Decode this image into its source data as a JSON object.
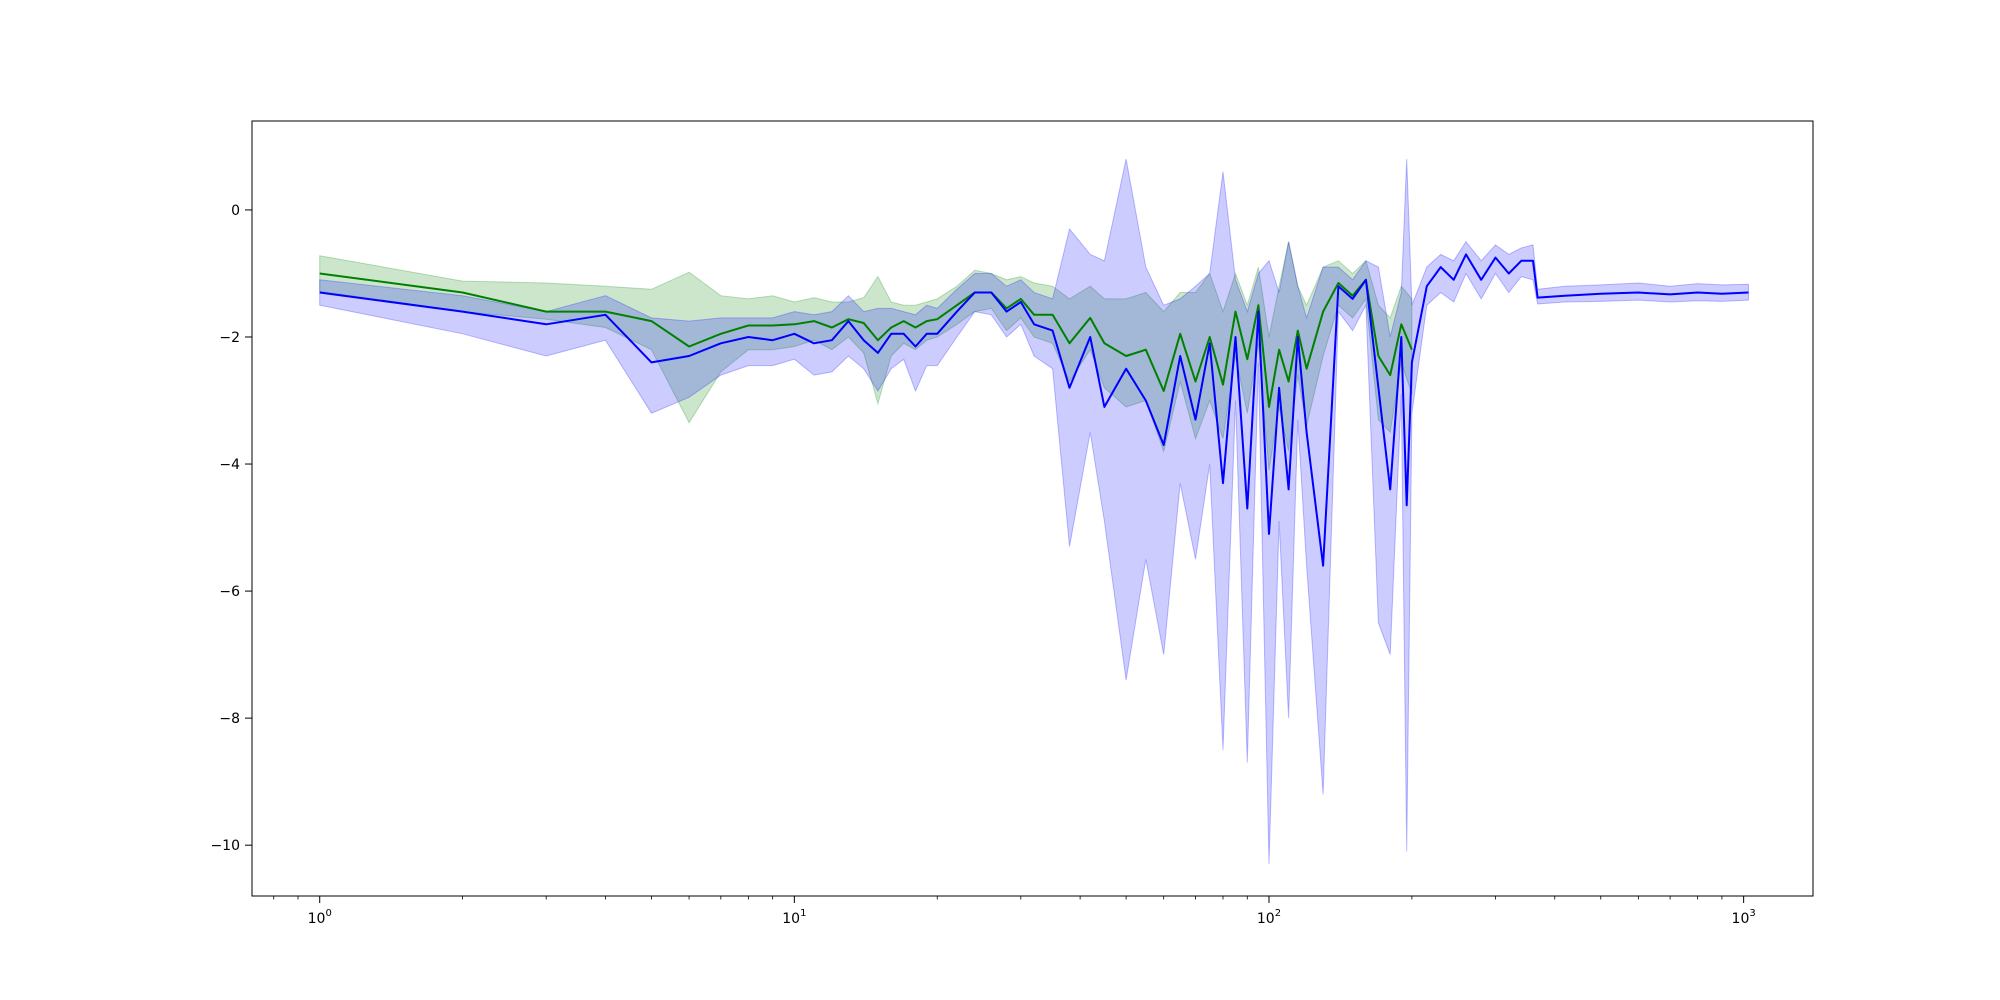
{
  "chart_data": {
    "type": "line",
    "title": "",
    "xlabel": "",
    "ylabel": "",
    "xscale": "log",
    "xlim": [
      0.72,
      1400
    ],
    "ylim": [
      -10.8,
      1.4
    ],
    "grid": false,
    "legend": "none",
    "x_ticks": [
      {
        "value": 1,
        "base": "10",
        "exp": "0"
      },
      {
        "value": 10,
        "base": "10",
        "exp": "1"
      },
      {
        "value": 100,
        "base": "10",
        "exp": "2"
      },
      {
        "value": 1000,
        "base": "10",
        "exp": "3"
      }
    ],
    "y_ticks": [
      {
        "value": 0,
        "label": "0"
      },
      {
        "value": -2,
        "label": "−2"
      },
      {
        "value": -4,
        "label": "−4"
      },
      {
        "value": -6,
        "label": "−6"
      },
      {
        "value": -8,
        "label": "−8"
      },
      {
        "value": -10,
        "label": "−10"
      }
    ],
    "series": [
      {
        "color": "#008000",
        "band_color": "#008000",
        "points": [
          [
            1,
            -1.0,
            -0.72,
            -1.28
          ],
          [
            2,
            -1.3,
            -1.12,
            -1.6
          ],
          [
            3,
            -1.6,
            -1.15,
            -1.72
          ],
          [
            4,
            -1.6,
            -1.2,
            -1.85
          ],
          [
            5,
            -1.75,
            -1.25,
            -2.2
          ],
          [
            6,
            -2.15,
            -0.98,
            -3.35
          ],
          [
            7,
            -1.95,
            -1.35,
            -2.55
          ],
          [
            8,
            -1.82,
            -1.4,
            -2.2
          ],
          [
            9,
            -1.82,
            -1.35,
            -2.2
          ],
          [
            10,
            -1.8,
            -1.45,
            -2.15
          ],
          [
            11,
            -1.75,
            -1.38,
            -2.05
          ],
          [
            12,
            -1.85,
            -1.45,
            -2.2
          ],
          [
            13,
            -1.72,
            -1.45,
            -2.0
          ],
          [
            14,
            -1.78,
            -1.38,
            -2.25
          ],
          [
            15,
            -2.05,
            -1.05,
            -3.05
          ],
          [
            16,
            -1.85,
            -1.45,
            -2.3
          ],
          [
            17,
            -1.75,
            -1.5,
            -2.1
          ],
          [
            18,
            -1.85,
            -1.5,
            -2.2
          ],
          [
            19,
            -1.75,
            -1.45,
            -2.05
          ],
          [
            20,
            -1.72,
            -1.4,
            -2.0
          ],
          [
            22,
            -1.5,
            -1.2,
            -1.8
          ],
          [
            24,
            -1.3,
            -0.95,
            -1.6
          ],
          [
            26,
            -1.3,
            -1.0,
            -1.55
          ],
          [
            28,
            -1.55,
            -1.1,
            -1.9
          ],
          [
            30,
            -1.4,
            -1.05,
            -1.7
          ],
          [
            32,
            -1.65,
            -1.15,
            -2.0
          ],
          [
            35,
            -1.65,
            -1.2,
            -2.1
          ],
          [
            38,
            -2.1,
            -1.4,
            -2.7
          ],
          [
            42,
            -1.7,
            -1.2,
            -2.2
          ],
          [
            45,
            -2.1,
            -1.4,
            -2.8
          ],
          [
            50,
            -2.3,
            -1.4,
            -3.1
          ],
          [
            55,
            -2.2,
            -1.3,
            -3.0
          ],
          [
            60,
            -2.85,
            -1.6,
            -3.8
          ],
          [
            65,
            -1.95,
            -1.3,
            -2.7
          ],
          [
            70,
            -2.7,
            -1.3,
            -3.6
          ],
          [
            75,
            -2.0,
            -1.0,
            -3.0
          ],
          [
            80,
            -2.75,
            -1.6,
            -3.6
          ],
          [
            85,
            -1.6,
            -1.0,
            -2.3
          ],
          [
            90,
            -2.35,
            -1.5,
            -3.2
          ],
          [
            95,
            -1.5,
            -0.9,
            -2.1
          ],
          [
            100,
            -3.1,
            -2.0,
            -4.1
          ],
          [
            105,
            -2.2,
            -1.2,
            -3.1
          ],
          [
            110,
            -2.7,
            -0.5,
            -3.8
          ],
          [
            115,
            -1.9,
            -1.2,
            -2.6
          ],
          [
            120,
            -2.5,
            -1.5,
            -3.4
          ],
          [
            130,
            -1.6,
            -0.9,
            -2.3
          ],
          [
            140,
            -1.15,
            -0.8,
            -1.5
          ],
          [
            150,
            -1.35,
            -1.0,
            -1.7
          ],
          [
            160,
            -1.1,
            -0.8,
            -1.4
          ],
          [
            170,
            -2.3,
            -1.5,
            -3.3
          ],
          [
            180,
            -2.6,
            -1.7,
            -3.5
          ],
          [
            190,
            -1.8,
            -1.2,
            -2.4
          ],
          [
            200,
            -2.2,
            -1.4,
            -2.9
          ]
        ]
      },
      {
        "color": "#0000ff",
        "band_color": "#0000ff",
        "points": [
          [
            1,
            -1.3,
            -1.1,
            -1.5
          ],
          [
            2,
            -1.6,
            -1.35,
            -1.95
          ],
          [
            3,
            -1.8,
            -1.6,
            -2.3
          ],
          [
            4,
            -1.65,
            -1.35,
            -2.05
          ],
          [
            5,
            -2.4,
            -1.7,
            -3.2
          ],
          [
            6,
            -2.3,
            -1.75,
            -2.95
          ],
          [
            7,
            -2.1,
            -1.7,
            -2.6
          ],
          [
            8,
            -2.0,
            -1.7,
            -2.45
          ],
          [
            9,
            -2.05,
            -1.7,
            -2.45
          ],
          [
            10,
            -1.95,
            -1.6,
            -2.35
          ],
          [
            11,
            -2.1,
            -1.65,
            -2.6
          ],
          [
            12,
            -2.05,
            -1.6,
            -2.55
          ],
          [
            13,
            -1.75,
            -1.35,
            -2.3
          ],
          [
            14,
            -2.05,
            -1.6,
            -2.5
          ],
          [
            15,
            -2.25,
            -1.55,
            -2.85
          ],
          [
            16,
            -1.95,
            -1.55,
            -2.5
          ],
          [
            17,
            -1.95,
            -1.6,
            -2.35
          ],
          [
            18,
            -2.15,
            -1.65,
            -2.85
          ],
          [
            19,
            -1.95,
            -1.5,
            -2.45
          ],
          [
            20,
            -1.95,
            -1.55,
            -2.45
          ],
          [
            22,
            -1.6,
            -1.25,
            -2.0
          ],
          [
            24,
            -1.3,
            -1.0,
            -1.6
          ],
          [
            26,
            -1.3,
            -1.0,
            -1.65
          ],
          [
            28,
            -1.6,
            -1.2,
            -2.0
          ],
          [
            30,
            -1.45,
            -1.1,
            -1.8
          ],
          [
            32,
            -1.8,
            -1.3,
            -2.3
          ],
          [
            35,
            -1.9,
            -1.4,
            -2.5
          ],
          [
            38,
            -2.8,
            -0.3,
            -5.3
          ],
          [
            42,
            -2.0,
            -0.7,
            -3.5
          ],
          [
            45,
            -3.1,
            -0.8,
            -4.9
          ],
          [
            50,
            -2.5,
            0.8,
            -7.4
          ],
          [
            55,
            -3.0,
            -0.9,
            -5.5
          ],
          [
            60,
            -3.7,
            -1.5,
            -7.0
          ],
          [
            65,
            -2.3,
            -1.4,
            -4.3
          ],
          [
            70,
            -3.3,
            -1.2,
            -5.5
          ],
          [
            75,
            -2.1,
            -1.0,
            -4.0
          ],
          [
            80,
            -4.3,
            0.6,
            -8.5
          ],
          [
            85,
            -2.0,
            -1.1,
            -3.0
          ],
          [
            90,
            -4.7,
            -1.6,
            -8.7
          ],
          [
            95,
            -1.6,
            -1.0,
            -2.4
          ],
          [
            100,
            -5.1,
            -0.8,
            -10.3
          ],
          [
            105,
            -2.8,
            -1.3,
            -4.9
          ],
          [
            110,
            -4.4,
            -0.5,
            -8.0
          ],
          [
            115,
            -2.0,
            -1.2,
            -3.3
          ],
          [
            120,
            -3.5,
            -1.7,
            -5.6
          ],
          [
            130,
            -5.6,
            -0.9,
            -9.2
          ],
          [
            140,
            -1.2,
            -0.9,
            -1.6
          ],
          [
            150,
            -1.4,
            -1.1,
            -1.9
          ],
          [
            160,
            -1.1,
            -0.8,
            -1.5
          ],
          [
            170,
            -2.8,
            -0.9,
            -6.5
          ],
          [
            180,
            -4.4,
            -2.0,
            -7.0
          ],
          [
            190,
            -2.0,
            -1.3,
            -2.9
          ],
          [
            195,
            -4.65,
            0.8,
            -10.1
          ],
          [
            200,
            -2.4,
            -1.5,
            -3.2
          ],
          [
            215,
            -1.2,
            -0.9,
            -1.5
          ],
          [
            230,
            -0.9,
            -0.7,
            -1.3
          ],
          [
            245,
            -1.1,
            -0.8,
            -1.45
          ],
          [
            260,
            -0.7,
            -0.5,
            -1.0
          ],
          [
            280,
            -1.1,
            -0.8,
            -1.4
          ],
          [
            300,
            -0.75,
            -0.55,
            -1.0
          ],
          [
            320,
            -1.0,
            -0.7,
            -1.3
          ],
          [
            340,
            -0.8,
            -0.6,
            -1.05
          ],
          [
            360,
            -0.8,
            -0.55,
            -1.1
          ],
          [
            368,
            -1.38,
            -1.25,
            -1.48
          ],
          [
            420,
            -1.35,
            -1.2,
            -1.45
          ],
          [
            500,
            -1.32,
            -1.18,
            -1.44
          ],
          [
            600,
            -1.3,
            -1.15,
            -1.42
          ],
          [
            700,
            -1.33,
            -1.2,
            -1.45
          ],
          [
            800,
            -1.3,
            -1.16,
            -1.43
          ],
          [
            900,
            -1.32,
            -1.18,
            -1.44
          ],
          [
            1024,
            -1.3,
            -1.17,
            -1.42
          ]
        ]
      }
    ]
  }
}
